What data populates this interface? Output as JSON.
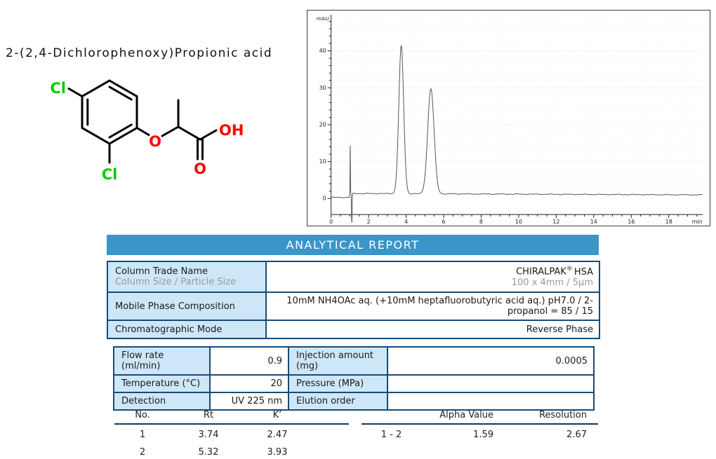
{
  "compound": {
    "title": "2-(2,4-Dichlorophenoxy)Propionic acid",
    "atom_labels": {
      "cl_top": "Cl",
      "cl_bottom": "Cl",
      "ether_o": "O",
      "carbonyl_o": "O",
      "hydroxyl": "OH"
    }
  },
  "theme": {
    "accent": "#3a96c9",
    "cell_bg": "#cde7f8",
    "table_border": "#1a4a74",
    "underline": "#17365d",
    "chlorine_green": "#00cc00",
    "oxygen_red": "#ff0000"
  },
  "report": {
    "header": "ANALYTICAL REPORT",
    "info_table": {
      "row1": {
        "label": "Column Trade Name",
        "sublabel": "Column Size / Particle Size",
        "value_brand": "CHIRALPAK",
        "value_reg": "®",
        "value_suffix": "HSA",
        "value_sub": "100 x 4mm / 5µm"
      },
      "row2": {
        "label": "Mobile Phase Composition",
        "value": "10mM NH4OAc aq. (+10mM heptafluorobutyric acid aq.) pH7.0 / 2-propanol = 85 / 15"
      },
      "row3": {
        "label": "Chromatographic Mode",
        "value": "Reverse Phase"
      }
    },
    "conditions_table": {
      "rows": [
        {
          "label_left": "Flow rate (ml/min)",
          "value_left": "0.9",
          "label_right": "Injection amount (mg)",
          "value_right": "0.0005"
        },
        {
          "label_left": "Temperature (°C)",
          "value_left": "20",
          "label_right": "Pressure (MPa)",
          "value_right": ""
        },
        {
          "label_left": "Detection",
          "value_left": "UV 225 nm",
          "label_right": "Elution order",
          "value_right": ""
        }
      ]
    },
    "results": {
      "left": {
        "headers": [
          "No.",
          "Rt",
          "K’"
        ],
        "rows": [
          [
            "1",
            "3.74",
            "2.47"
          ],
          [
            "2",
            "5.32",
            "3.93"
          ]
        ]
      },
      "right": {
        "headers": [
          "",
          "Alpha Value",
          "Resolution"
        ],
        "rows": [
          [
            "1 - 2",
            "1.59",
            "2.67"
          ]
        ]
      }
    }
  },
  "chart_data": {
    "type": "line",
    "title": "",
    "xlabel": "min",
    "ylabel": "mAU",
    "xlim": [
      0,
      19.8
    ],
    "ylim": [
      -7,
      50
    ],
    "x_ticks": [
      0,
      2,
      4,
      6,
      8,
      10,
      12,
      14,
      16,
      18
    ],
    "y_ticks": [
      0,
      10,
      20,
      30,
      40
    ],
    "grid": "dotted horizontal",
    "legend": "none",
    "baseline_mAU": 1.2,
    "injection_spike": {
      "time": 1.02,
      "top_mAU": 13,
      "bottom_mAU": -7.5
    },
    "peaks": [
      {
        "no": 1,
        "rt_min": 3.74,
        "height_mAU": 40,
        "sigma_min": 0.13
      },
      {
        "no": 2,
        "rt_min": 5.32,
        "height_mAU": 28.5,
        "sigma_min": 0.17
      }
    ]
  }
}
